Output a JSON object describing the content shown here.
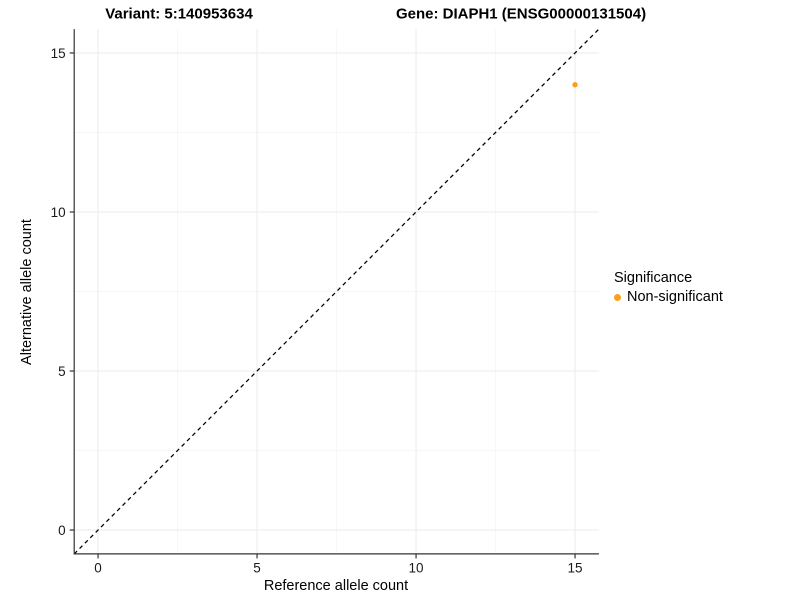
{
  "titles": {
    "variant": "Variant: 5:140953634",
    "gene": "Gene: DIAPH1 (ENSG00000131504)"
  },
  "axes": {
    "x_label": "Reference allele count",
    "y_label": "Alternative allele count"
  },
  "legend": {
    "title": "Significance",
    "items": [
      {
        "label": "Non-significant",
        "color": "#F9A01F"
      }
    ]
  },
  "colors": {
    "point": "#F9A01F",
    "grid_major": "#EBEBEB",
    "grid_minor": "#F5F5F5",
    "axis_line": "#333333",
    "tick_text": "#1a1a1a",
    "reference_line": "#000000"
  },
  "chart_data": {
    "type": "scatter",
    "title": "Variant: 5:140953634   Gene: DIAPH1 (ENSG00000131504)",
    "xlabel": "Reference allele count",
    "ylabel": "Alternative allele count",
    "xlim": [
      -0.75,
      15.75
    ],
    "ylim": [
      -0.75,
      15.75
    ],
    "x_major_ticks": [
      0,
      5,
      10,
      15
    ],
    "y_major_ticks": [
      0,
      5,
      10,
      15
    ],
    "x_minor_ticks": [
      2.5,
      7.5,
      12.5
    ],
    "y_minor_ticks": [
      2.5,
      7.5,
      12.5
    ],
    "grid": true,
    "legend_position": "right",
    "series": [
      {
        "name": "Non-significant",
        "color": "#F9A01F",
        "points": [
          {
            "x": 15,
            "y": 14
          }
        ]
      }
    ],
    "reference_line": {
      "label": "identity",
      "style": "dashed",
      "x1": -0.75,
      "y1": -0.75,
      "x2": 15.75,
      "y2": 15.75
    }
  }
}
